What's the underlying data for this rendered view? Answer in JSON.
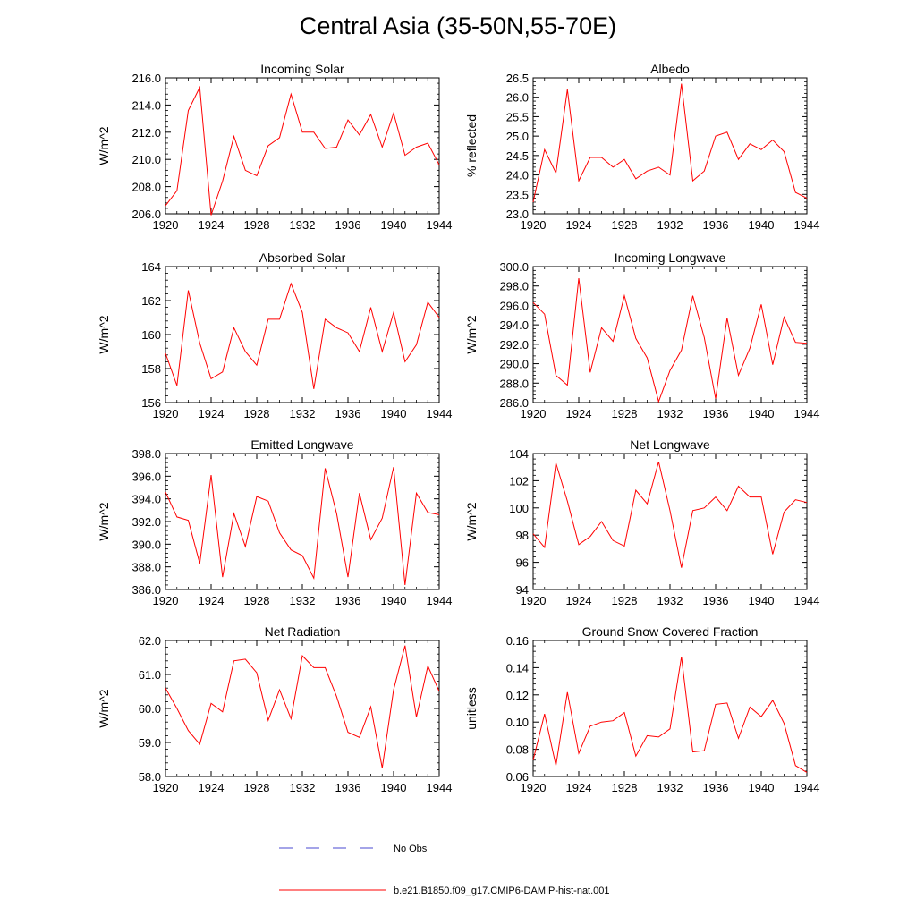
{
  "title": "Central Asia (35-50N,55-70E)",
  "legend": [
    {
      "label": "No Obs",
      "color": "#4a4ad0",
      "dash": true
    },
    {
      "label": "b.e21.B1850.f09_g17.CMIP6-DAMIP-hist-nat.001",
      "color": "#ff0000",
      "dash": false
    }
  ],
  "chart_data": [
    {
      "type": "line",
      "title": "Incoming Solar",
      "ylabel": "W/m^2",
      "xlim": [
        1920,
        1944
      ],
      "xticks": [
        1920,
        1924,
        1928,
        1932,
        1936,
        1940,
        1944
      ],
      "ylim": [
        206,
        216
      ],
      "yticks": [
        206,
        208,
        210,
        212,
        214,
        216
      ],
      "ydec": 1,
      "x": [
        1920,
        1921,
        1922,
        1923,
        1924,
        1925,
        1926,
        1927,
        1928,
        1929,
        1930,
        1931,
        1932,
        1933,
        1934,
        1935,
        1936,
        1937,
        1938,
        1939,
        1940,
        1941,
        1942,
        1943,
        1944
      ],
      "series": [
        {
          "values": [
            206.6,
            207.7,
            213.6,
            215.3,
            205.9,
            208.4,
            211.7,
            209.2,
            208.8,
            211.0,
            211.6,
            214.8,
            212.0,
            212.0,
            210.8,
            210.9,
            212.9,
            211.8,
            213.3,
            210.9,
            213.4,
            210.3,
            210.9,
            211.2,
            209.6
          ]
        }
      ]
    },
    {
      "type": "line",
      "title": "Albedo",
      "ylabel": "% reflected",
      "xlim": [
        1920,
        1944
      ],
      "xticks": [
        1920,
        1924,
        1928,
        1932,
        1936,
        1940,
        1944
      ],
      "ylim": [
        23,
        26.5
      ],
      "yticks": [
        23.0,
        23.5,
        24.0,
        24.5,
        25.0,
        25.5,
        26.0,
        26.5
      ],
      "ydec": 1,
      "x": [
        1920,
        1921,
        1922,
        1923,
        1924,
        1925,
        1926,
        1927,
        1928,
        1929,
        1930,
        1931,
        1932,
        1933,
        1934,
        1935,
        1936,
        1937,
        1938,
        1939,
        1940,
        1941,
        1942,
        1943,
        1944
      ],
      "series": [
        {
          "values": [
            23.3,
            24.65,
            24.05,
            26.2,
            23.85,
            24.45,
            24.45,
            24.2,
            24.4,
            23.9,
            24.1,
            24.2,
            24.0,
            26.35,
            23.85,
            24.1,
            25.0,
            25.1,
            24.4,
            24.8,
            24.65,
            24.9,
            24.6,
            23.55,
            23.4
          ]
        }
      ]
    },
    {
      "type": "line",
      "title": "Absorbed Solar",
      "ylabel": "W/m^2",
      "xlim": [
        1920,
        1944
      ],
      "xticks": [
        1920,
        1924,
        1928,
        1932,
        1936,
        1940,
        1944
      ],
      "ylim": [
        156,
        164
      ],
      "yticks": [
        156,
        158,
        160,
        162,
        164
      ],
      "ydec": 0,
      "x": [
        1920,
        1921,
        1922,
        1923,
        1924,
        1925,
        1926,
        1927,
        1928,
        1929,
        1930,
        1931,
        1932,
        1933,
        1934,
        1935,
        1936,
        1937,
        1938,
        1939,
        1940,
        1941,
        1942,
        1943,
        1944
      ],
      "series": [
        {
          "values": [
            158.9,
            157.0,
            162.6,
            159.5,
            157.4,
            157.8,
            160.4,
            159.0,
            158.2,
            160.9,
            160.9,
            163.0,
            161.3,
            156.8,
            160.9,
            160.4,
            160.1,
            159.0,
            161.6,
            159.0,
            161.3,
            158.4,
            159.4,
            161.9,
            161.0
          ]
        }
      ]
    },
    {
      "type": "line",
      "title": "Incoming Longwave",
      "ylabel": "W/m^2",
      "xlim": [
        1920,
        1944
      ],
      "xticks": [
        1920,
        1924,
        1928,
        1932,
        1936,
        1940,
        1944
      ],
      "ylim": [
        286,
        300
      ],
      "yticks": [
        286,
        288,
        290,
        292,
        294,
        296,
        298,
        300
      ],
      "ydec": 1,
      "x": [
        1920,
        1921,
        1922,
        1923,
        1924,
        1925,
        1926,
        1927,
        1928,
        1929,
        1930,
        1931,
        1932,
        1933,
        1934,
        1935,
        1936,
        1937,
        1938,
        1939,
        1940,
        1941,
        1942,
        1943,
        1944
      ],
      "series": [
        {
          "values": [
            296.3,
            295.1,
            288.8,
            287.8,
            298.8,
            289.1,
            293.7,
            292.3,
            297.0,
            292.6,
            290.6,
            286.1,
            289.3,
            291.4,
            297.0,
            292.7,
            286.4,
            294.7,
            288.8,
            291.6,
            296.1,
            289.9,
            294.8,
            292.2,
            292.1
          ]
        }
      ]
    },
    {
      "type": "line",
      "title": "Emitted Longwave",
      "ylabel": "W/m^2",
      "xlim": [
        1920,
        1944
      ],
      "xticks": [
        1920,
        1924,
        1928,
        1932,
        1936,
        1940,
        1944
      ],
      "ylim": [
        386,
        398
      ],
      "yticks": [
        386,
        388,
        390,
        392,
        394,
        396,
        398
      ],
      "ydec": 1,
      "x": [
        1920,
        1921,
        1922,
        1923,
        1924,
        1925,
        1926,
        1927,
        1928,
        1929,
        1930,
        1931,
        1932,
        1933,
        1934,
        1935,
        1936,
        1937,
        1938,
        1939,
        1940,
        1941,
        1942,
        1943,
        1944
      ],
      "series": [
        {
          "values": [
            394.6,
            392.4,
            392.1,
            388.3,
            396.1,
            387.1,
            392.7,
            389.8,
            394.2,
            393.8,
            391.0,
            389.5,
            389.0,
            387.0,
            396.7,
            392.7,
            387.1,
            394.5,
            390.4,
            392.3,
            396.8,
            386.4,
            394.5,
            392.8,
            392.6
          ]
        }
      ]
    },
    {
      "type": "line",
      "title": "Net Longwave",
      "ylabel": "W/m^2",
      "xlim": [
        1920,
        1944
      ],
      "xticks": [
        1920,
        1924,
        1928,
        1932,
        1936,
        1940,
        1944
      ],
      "ylim": [
        94,
        104
      ],
      "yticks": [
        94,
        96,
        98,
        100,
        102,
        104
      ],
      "ydec": 0,
      "x": [
        1920,
        1921,
        1922,
        1923,
        1924,
        1925,
        1926,
        1927,
        1928,
        1929,
        1930,
        1931,
        1932,
        1933,
        1934,
        1935,
        1936,
        1937,
        1938,
        1939,
        1940,
        1941,
        1942,
        1943,
        1944
      ],
      "series": [
        {
          "values": [
            98.1,
            97.1,
            103.3,
            100.5,
            97.3,
            97.9,
            99.0,
            97.6,
            97.2,
            101.3,
            100.3,
            103.4,
            99.8,
            95.6,
            99.8,
            100.0,
            100.8,
            99.8,
            101.6,
            100.8,
            100.8,
            96.6,
            99.7,
            100.6,
            100.4
          ]
        }
      ]
    },
    {
      "type": "line",
      "title": "Net Radiation",
      "ylabel": "W/m^2",
      "xlim": [
        1920,
        1944
      ],
      "xticks": [
        1920,
        1924,
        1928,
        1932,
        1936,
        1940,
        1944
      ],
      "ylim": [
        58,
        62
      ],
      "yticks": [
        58,
        59,
        60,
        61,
        62
      ],
      "ydec": 1,
      "x": [
        1920,
        1921,
        1922,
        1923,
        1924,
        1925,
        1926,
        1927,
        1928,
        1929,
        1930,
        1931,
        1932,
        1933,
        1934,
        1935,
        1936,
        1937,
        1938,
        1939,
        1940,
        1941,
        1942,
        1943,
        1944
      ],
      "series": [
        {
          "values": [
            60.6,
            60.0,
            59.35,
            58.95,
            60.15,
            59.9,
            61.4,
            61.45,
            61.05,
            59.65,
            60.55,
            59.7,
            61.55,
            61.2,
            61.2,
            60.35,
            59.3,
            59.15,
            60.05,
            58.25,
            60.55,
            61.85,
            59.75,
            61.25,
            60.5
          ]
        }
      ]
    },
    {
      "type": "line",
      "title": "Ground Snow Covered Fraction",
      "ylabel": "unitless",
      "xlim": [
        1920,
        1944
      ],
      "xticks": [
        1920,
        1924,
        1928,
        1932,
        1936,
        1940,
        1944
      ],
      "ylim": [
        0.06,
        0.16
      ],
      "yticks": [
        0.06,
        0.08,
        0.1,
        0.12,
        0.14,
        0.16
      ],
      "ydec": 2,
      "x": [
        1920,
        1921,
        1922,
        1923,
        1924,
        1925,
        1926,
        1927,
        1928,
        1929,
        1930,
        1931,
        1932,
        1933,
        1934,
        1935,
        1936,
        1937,
        1938,
        1939,
        1940,
        1941,
        1942,
        1943,
        1944
      ],
      "series": [
        {
          "values": [
            0.072,
            0.106,
            0.068,
            0.122,
            0.077,
            0.097,
            0.1,
            0.101,
            0.107,
            0.075,
            0.09,
            0.089,
            0.095,
            0.148,
            0.078,
            0.079,
            0.113,
            0.114,
            0.088,
            0.111,
            0.104,
            0.116,
            0.099,
            0.068,
            0.063
          ]
        }
      ]
    }
  ]
}
